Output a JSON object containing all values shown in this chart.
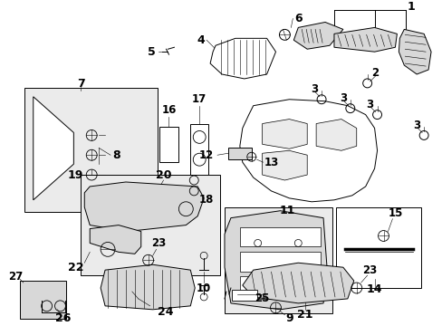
{
  "bg_color": "#ffffff",
  "line_color": "#000000",
  "lw": 0.7,
  "thin_lw": 0.4,
  "box_fill": "#ebebeb",
  "part_fill": "#d8d8d8",
  "white": "#ffffff"
}
